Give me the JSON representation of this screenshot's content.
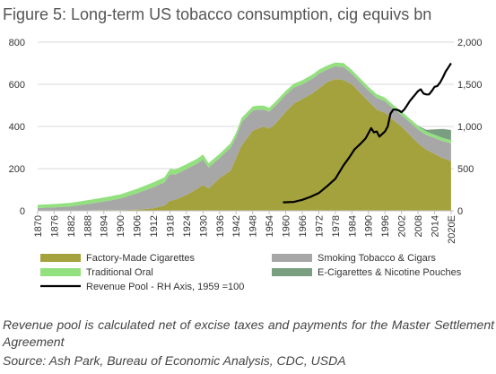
{
  "chart_data": {
    "type": "area",
    "title": "Figure 5: Long-term US tobacco consumption, cig equivs bn",
    "y_left": {
      "min": 0,
      "max": 800,
      "ticks": [
        "0",
        "200",
        "400",
        "600",
        "800"
      ]
    },
    "y_right": {
      "min": 0,
      "max": 2000,
      "ticks": [
        "0",
        "500",
        "1,000",
        "1,500",
        "2,000"
      ]
    },
    "x_ticks": [
      "1870",
      "1876",
      "1882",
      "1888",
      "1894",
      "1900",
      "1906",
      "1912",
      "1918",
      "1924",
      "1930",
      "1936",
      "1942",
      "1948",
      "1954",
      "1960",
      "1966",
      "1972",
      "1978",
      "1984",
      "1990",
      "1996",
      "2002",
      "2008",
      "2014",
      "2020E"
    ],
    "grid": "horizontal, left axis",
    "legend_position": "bottom",
    "x": [
      1870,
      1876,
      1882,
      1888,
      1894,
      1900,
      1906,
      1912,
      1916,
      1918,
      1920,
      1924,
      1928,
      1930,
      1932,
      1936,
      1940,
      1942,
      1944,
      1948,
      1950,
      1952,
      1954,
      1956,
      1960,
      1963,
      1966,
      1970,
      1972,
      1975,
      1978,
      1981,
      1984,
      1987,
      1990,
      1993,
      1996,
      1999,
      2002,
      2005,
      2008,
      2011,
      2014,
      2017,
      2020
    ],
    "series": [
      {
        "name": "Factory-Made Cigarettes",
        "color": "#a4a23c",
        "values": [
          1,
          1,
          1,
          2,
          4,
          3,
          5,
          12,
          25,
          48,
          52,
          75,
          105,
          122,
          105,
          155,
          190,
          250,
          310,
          380,
          390,
          400,
          390,
          410,
          470,
          510,
          530,
          560,
          580,
          610,
          625,
          620,
          600,
          560,
          520,
          480,
          465,
          430,
          400,
          360,
          320,
          290,
          270,
          250,
          235
        ]
      },
      {
        "name": "Smoking Tobacco & Cigars",
        "color": "#a7a7a7",
        "values": [
          12,
          15,
          20,
          30,
          40,
          55,
          78,
          100,
          110,
          125,
          120,
          123,
          120,
          122,
          100,
          95,
          110,
          100,
          110,
          95,
          90,
          80,
          80,
          85,
          80,
          75,
          70,
          70,
          70,
          60,
          60,
          62,
          50,
          50,
          50,
          55,
          55,
          55,
          55,
          60,
          65,
          70,
          75,
          80,
          85
        ]
      },
      {
        "name": "Traditional Oral",
        "color": "#92e07e",
        "values": [
          15,
          16,
          17,
          18,
          19,
          20,
          21,
          23,
          24,
          25,
          24,
          23,
          23,
          23,
          21,
          20,
          21,
          20,
          21,
          20,
          19,
          19,
          19,
          19,
          19,
          19,
          19,
          19,
          19,
          19,
          19,
          19,
          18,
          18,
          18,
          18,
          17,
          17,
          17,
          17,
          16,
          16,
          16,
          16,
          15
        ]
      },
      {
        "name": "E-Cigarettes & Nicotine Pouches",
        "color": "#7a9e80",
        "values": [
          0,
          0,
          0,
          0,
          0,
          0,
          0,
          0,
          0,
          0,
          0,
          0,
          0,
          0,
          0,
          0,
          0,
          0,
          0,
          0,
          0,
          0,
          0,
          0,
          0,
          0,
          0,
          0,
          0,
          0,
          0,
          0,
          0,
          0,
          0,
          0,
          0,
          0,
          0,
          0,
          2,
          8,
          25,
          42,
          48
        ]
      }
    ],
    "line_series": {
      "name": "Revenue Pool - RH Axis, 1959 =100",
      "axis": "right",
      "color": "#000000",
      "x": [
        1959,
        1963,
        1966,
        1969,
        1972,
        1975,
        1978,
        1981,
        1983,
        1985,
        1987,
        1989,
        1991,
        1992,
        1993,
        1994,
        1996,
        1997,
        1998,
        1999,
        2000,
        2001,
        2002,
        2003,
        2004,
        2005,
        2006,
        2007,
        2008,
        2009,
        2010,
        2011,
        2012,
        2013,
        2014,
        2015,
        2016,
        2017,
        2018,
        2019,
        2020
      ],
      "values": [
        100,
        105,
        130,
        165,
        210,
        290,
        380,
        540,
        630,
        730,
        790,
        860,
        980,
        930,
        940,
        880,
        940,
        1000,
        1150,
        1200,
        1200,
        1190,
        1170,
        1200,
        1250,
        1300,
        1340,
        1380,
        1420,
        1440,
        1390,
        1380,
        1380,
        1420,
        1470,
        1480,
        1520,
        1580,
        1650,
        1700,
        1750
      ]
    }
  },
  "note": "Revenue pool is calculated net of excise taxes and payments for the Master Settlement Agreement",
  "source": "Source: Ash Park, Bureau of Economic Analysis, CDC, USDA"
}
